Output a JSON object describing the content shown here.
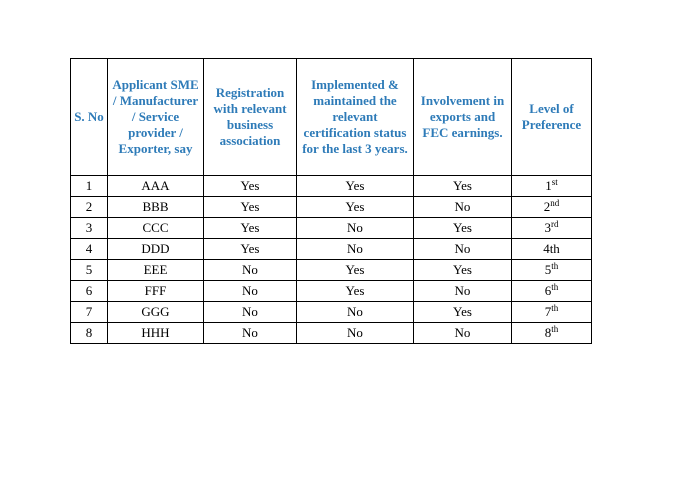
{
  "table": {
    "header": [
      "S. No",
      "Applicant SME / Manufacturer / Service provider / Exporter, say",
      "Registration with relevant business association",
      "Implemented & maintained the relevant certification status for the last 3 years.",
      "Involvement in exports and FEC earnings.",
      "Level of Preference"
    ],
    "rows": [
      {
        "sno": "1",
        "applicant": "AAA",
        "registration": "Yes",
        "implemented": "Yes",
        "involvement": "Yes",
        "level": "1",
        "level_sup": "st"
      },
      {
        "sno": "2",
        "applicant": "BBB",
        "registration": "Yes",
        "implemented": "Yes",
        "involvement": "No",
        "level": "2",
        "level_sup": "nd"
      },
      {
        "sno": "3",
        "applicant": "CCC",
        "registration": "Yes",
        "implemented": "No",
        "involvement": "Yes",
        "level": "3",
        "level_sup": "rd"
      },
      {
        "sno": "4",
        "applicant": "DDD",
        "registration": "Yes",
        "implemented": "No",
        "involvement": "No",
        "level": "4th"
      },
      {
        "sno": "5",
        "applicant": "EEE",
        "registration": "No",
        "implemented": "Yes",
        "involvement": "Yes",
        "level": "5",
        "level_sup": "th"
      },
      {
        "sno": "6",
        "applicant": "FFF",
        "registration": "No",
        "implemented": "Yes",
        "involvement": "No",
        "level": "6",
        "level_sup": "th"
      },
      {
        "sno": "7",
        "applicant": "GGG",
        "registration": "No",
        "implemented": "No",
        "involvement": "Yes",
        "level": "7",
        "level_sup": "th"
      },
      {
        "sno": "8",
        "applicant": "HHH",
        "registration": "No",
        "implemented": "No",
        "involvement": "No",
        "level": "8",
        "level_sup": "th"
      }
    ]
  }
}
